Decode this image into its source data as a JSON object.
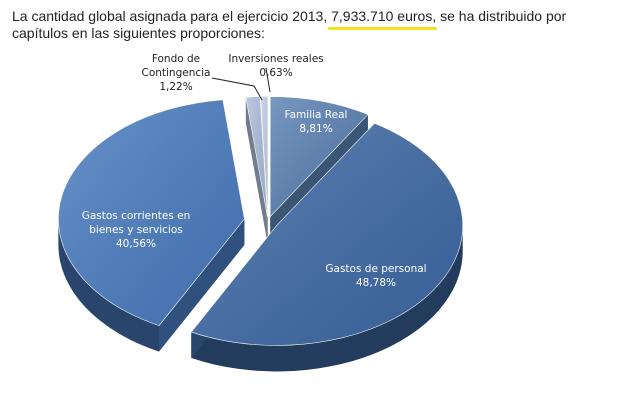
{
  "intro": {
    "text_before": "La cantidad global asignada para el ejercicio 2013, ",
    "highlight": "7,933.710 euros",
    "text_after": ", se ha distribuido por capítulos en las siguientes proporciones:"
  },
  "chart_data": {
    "type": "pie",
    "title": "",
    "slices": [
      {
        "label_lines": [
          "Familia Real"
        ],
        "value_text": "8,81%",
        "value": 8.81,
        "color": "#5a82b4"
      },
      {
        "label_lines": [
          "Gastos de personal"
        ],
        "value_text": "48,78%",
        "value": 48.78,
        "color": "#3f6ba8"
      },
      {
        "label_lines": [
          "Gastos corrientes en",
          "bienes y servicios"
        ],
        "value_text": "40,56%",
        "value": 40.56,
        "color": "#4a7dc2"
      },
      {
        "label_lines": [
          "Fondo de",
          "Contingencia"
        ],
        "value_text": "1,22%",
        "value": 1.22,
        "color": "#aebfdc"
      },
      {
        "label_lines": [
          "Inversiones reales"
        ],
        "value_text": "0,63%",
        "value": 0.63,
        "color": "#c6d2e7"
      }
    ]
  }
}
